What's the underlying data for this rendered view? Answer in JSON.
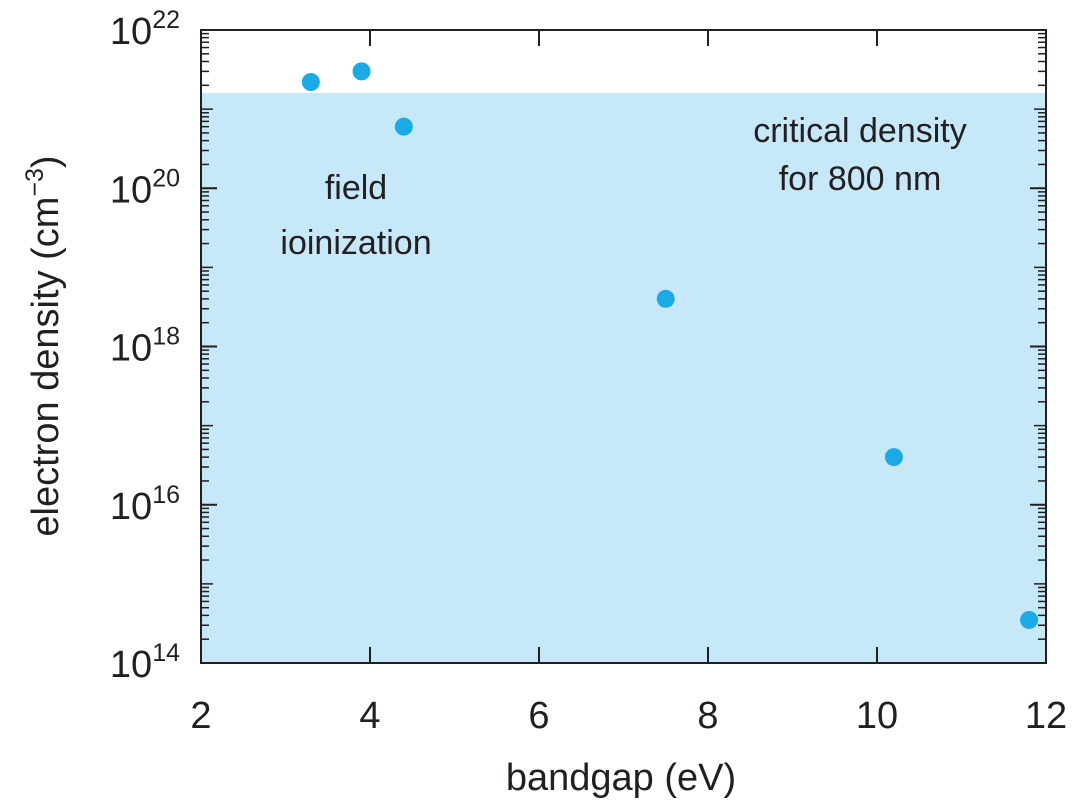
{
  "chart_data": {
    "type": "scatter",
    "xlabel": "bandgap (eV)",
    "ylabel": {
      "main": "electron density (cm",
      "sup": "−3",
      "close": ")"
    },
    "xlim": [
      2,
      12
    ],
    "ylim": [
      100000000000000.0,
      1e+22
    ],
    "yscale": "log",
    "grid": false,
    "x_ticks": [
      "2",
      "4",
      "6",
      "8",
      "10",
      "12"
    ],
    "y_ticks": [
      {
        "base": "10",
        "exp": "14"
      },
      {
        "base": "10",
        "exp": "16"
      },
      {
        "base": "10",
        "exp": "18"
      },
      {
        "base": "10",
        "exp": "20"
      },
      {
        "base": "10",
        "exp": "22"
      }
    ],
    "series": [
      {
        "color": "#1aabe6",
        "x": [
          3.3,
          3.9,
          4.4,
          7.5,
          10.2,
          11.8
        ],
        "y": [
          2.2e+21,
          3e+21,
          6e+20,
          4e+18,
          4e+16,
          350000000000000.0
        ]
      }
    ],
    "region": {
      "y_max": 1.6e+21,
      "color": "#c6e8f8"
    },
    "annotations": [
      {
        "lines": [
          "critical density",
          "for 800 nm"
        ]
      },
      {
        "lines": [
          "field",
          "ioinization"
        ]
      }
    ]
  }
}
